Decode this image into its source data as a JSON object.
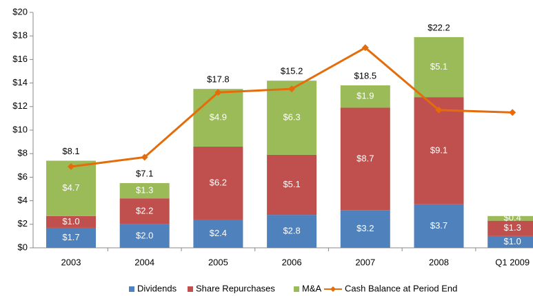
{
  "chart_data": {
    "type": "bar",
    "stacked": true,
    "categories": [
      "2003",
      "2004",
      "2005",
      "2006",
      "2007",
      "2008",
      "Q1 2009"
    ],
    "series": [
      {
        "name": "Dividends",
        "color": "#4f81bd",
        "values": [
          1.7,
          2.0,
          2.4,
          2.8,
          3.2,
          3.7,
          1.0
        ],
        "value_labels": [
          "$1.7",
          "$2.0",
          "$2.4",
          "$2.8",
          "$3.2",
          "$3.7",
          "$1.0"
        ]
      },
      {
        "name": "Share Repurchases",
        "color": "#c0504d",
        "values": [
          1.0,
          2.2,
          6.2,
          5.1,
          8.7,
          9.1,
          1.3
        ],
        "value_labels": [
          "$1.0",
          "$2.2",
          "$6.2",
          "$5.1",
          "$8.7",
          "$9.1",
          "$1.3"
        ]
      },
      {
        "name": "M&A",
        "color": "#9bbb59",
        "values": [
          4.7,
          1.3,
          4.9,
          6.3,
          1.9,
          5.1,
          0.4
        ],
        "value_labels": [
          "$4.7",
          "$1.3",
          "$4.9",
          "$6.3",
          "$1.9",
          "$5.1",
          "$0.4"
        ]
      },
      {
        "name": "Cash Balance at Period End",
        "type": "line",
        "color": "#e46c0a",
        "values": [
          6.9,
          7.7,
          13.2,
          13.5,
          17.0,
          11.7,
          11.5
        ]
      }
    ],
    "annotations": [
      "$8.1",
      "$7.1",
      "$17.8",
      "$15.2",
      "$18.5",
      "$22.2",
      null
    ],
    "ylim": [
      0,
      20
    ],
    "yticks": [
      {
        "value": 0,
        "label": "$0"
      },
      {
        "value": 2,
        "label": "$2"
      },
      {
        "value": 4,
        "label": "$4"
      },
      {
        "value": 6,
        "label": "$6"
      },
      {
        "value": 8,
        "label": "$8"
      },
      {
        "value": 10,
        "label": "$10"
      },
      {
        "value": 12,
        "label": "$12"
      },
      {
        "value": 14,
        "label": "$14"
      },
      {
        "value": 16,
        "label": "$16"
      },
      {
        "value": 18,
        "label": "$18"
      },
      {
        "value": 20,
        "label": "$20"
      }
    ],
    "grid": false,
    "legend": "bottom"
  }
}
